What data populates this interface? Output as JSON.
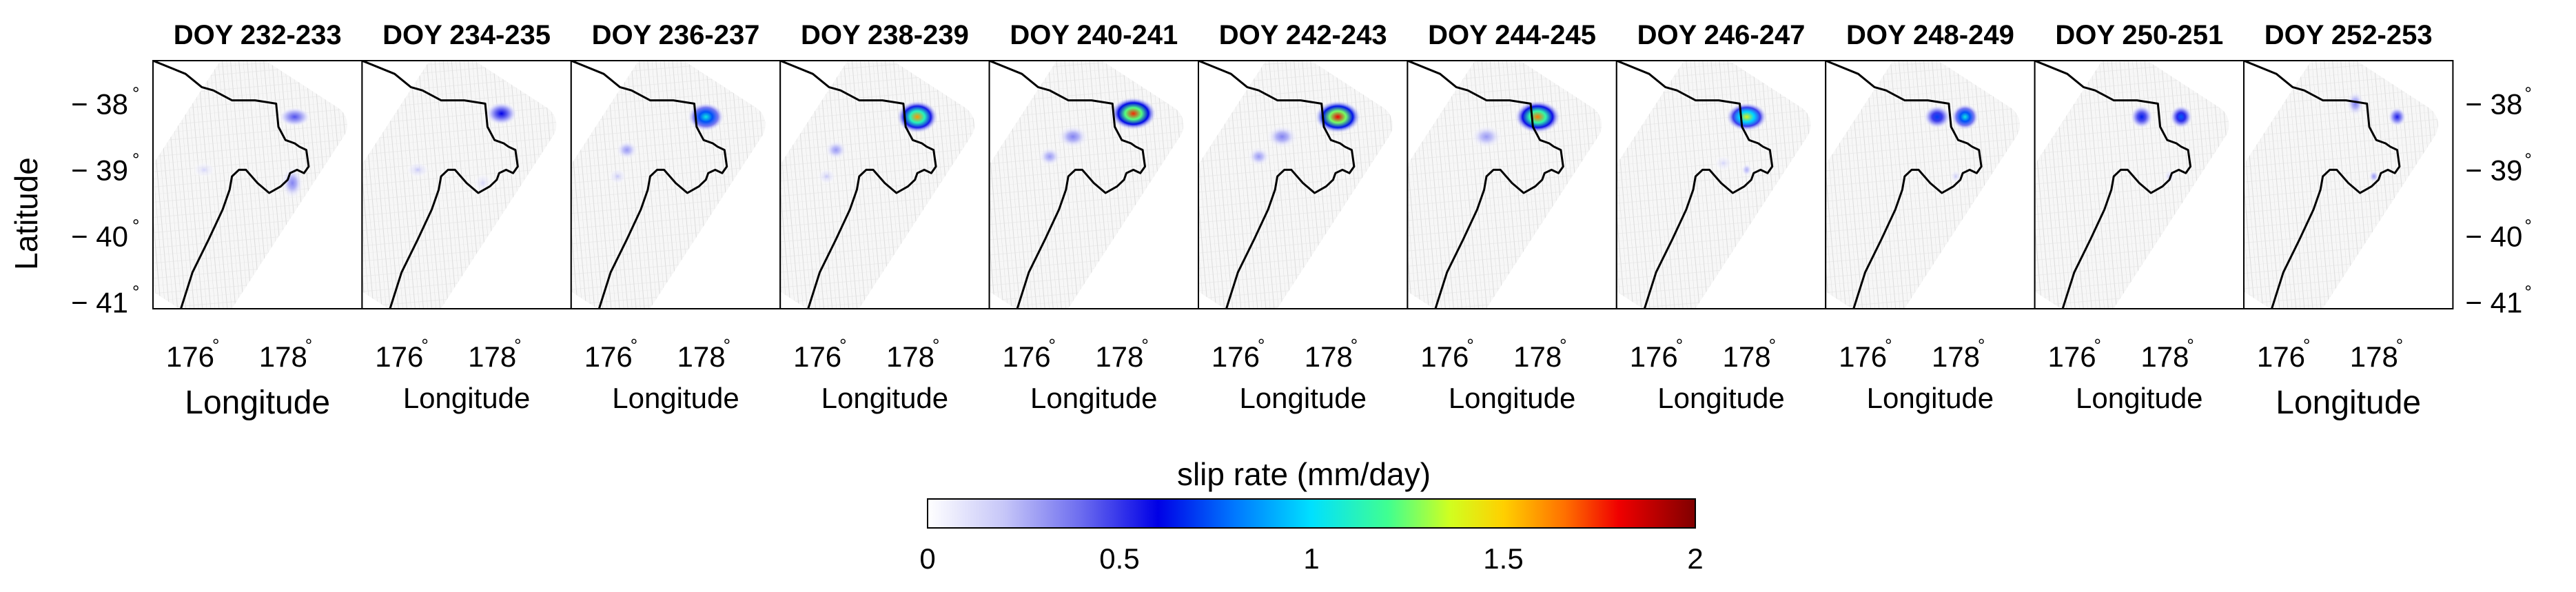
{
  "chart_data": {
    "type": "heatmap",
    "description_level": "small multiples of slow-slip rate maps",
    "ylabel": "Latitude",
    "xlabel": "Longitude",
    "x_ticks": [
      176,
      178
    ],
    "y_ticks": [
      38,
      39,
      40,
      41
    ],
    "x_tick_labels": [
      "176",
      "178"
    ],
    "y_tick_labels": [
      "38",
      "39",
      "40",
      "41"
    ],
    "degree_symbol": "°",
    "xlim": [
      175.2,
      179.7
    ],
    "ylim": [
      41.1,
      37.35
    ],
    "panels": [
      {
        "title": "DOY 232-233",
        "peak_slip_rate": 0.45,
        "patches": [
          {
            "lon": 178.25,
            "lat": 38.2,
            "rate": 0.45,
            "rx": 0.35,
            "ry": 0.15
          },
          {
            "lon": 178.2,
            "lat": 39.2,
            "rate": 0.35,
            "rx": 0.25,
            "ry": 0.25
          },
          {
            "lon": 176.3,
            "lat": 39.0,
            "rate": 0.15,
            "rx": 0.25,
            "ry": 0.12
          }
        ]
      },
      {
        "title": "DOY 234-235",
        "peak_slip_rate": 0.6,
        "patches": [
          {
            "lon": 178.2,
            "lat": 38.15,
            "rate": 0.6,
            "rx": 0.35,
            "ry": 0.18
          },
          {
            "lon": 176.4,
            "lat": 39.0,
            "rate": 0.2,
            "rx": 0.25,
            "ry": 0.12
          },
          {
            "lon": 177.8,
            "lat": 39.2,
            "rate": 0.15,
            "rx": 0.2,
            "ry": 0.15
          }
        ]
      },
      {
        "title": "DOY 236-237",
        "peak_slip_rate": 1.05,
        "patches": [
          {
            "lon": 178.1,
            "lat": 38.2,
            "rate": 1.05,
            "rx": 0.4,
            "ry": 0.22
          },
          {
            "lon": 176.4,
            "lat": 38.7,
            "rate": 0.3,
            "rx": 0.25,
            "ry": 0.15
          },
          {
            "lon": 176.2,
            "lat": 39.1,
            "rate": 0.2,
            "rx": 0.2,
            "ry": 0.12
          }
        ]
      },
      {
        "title": "DOY 238-239",
        "peak_slip_rate": 1.6,
        "patches": [
          {
            "lon": 178.15,
            "lat": 38.2,
            "rate": 1.6,
            "rx": 0.45,
            "ry": 0.25
          },
          {
            "lon": 176.4,
            "lat": 38.7,
            "rate": 0.3,
            "rx": 0.25,
            "ry": 0.15
          },
          {
            "lon": 176.2,
            "lat": 39.1,
            "rate": 0.2,
            "rx": 0.2,
            "ry": 0.12
          }
        ]
      },
      {
        "title": "DOY 240-241",
        "peak_slip_rate": 1.75,
        "patches": [
          {
            "lon": 178.3,
            "lat": 38.15,
            "rate": 1.75,
            "rx": 0.5,
            "ry": 0.25
          },
          {
            "lon": 177.0,
            "lat": 38.5,
            "rate": 0.35,
            "rx": 0.35,
            "ry": 0.18
          },
          {
            "lon": 176.5,
            "lat": 38.8,
            "rate": 0.3,
            "rx": 0.25,
            "ry": 0.15
          }
        ]
      },
      {
        "title": "DOY 242-243",
        "peak_slip_rate": 1.8,
        "patches": [
          {
            "lon": 178.2,
            "lat": 38.2,
            "rate": 1.8,
            "rx": 0.5,
            "ry": 0.25
          },
          {
            "lon": 177.0,
            "lat": 38.5,
            "rate": 0.35,
            "rx": 0.35,
            "ry": 0.18
          },
          {
            "lon": 176.5,
            "lat": 38.8,
            "rate": 0.3,
            "rx": 0.25,
            "ry": 0.15
          }
        ]
      },
      {
        "title": "DOY 244-245",
        "peak_slip_rate": 1.65,
        "patches": [
          {
            "lon": 178.0,
            "lat": 38.2,
            "rate": 1.65,
            "rx": 0.5,
            "ry": 0.25
          },
          {
            "lon": 176.9,
            "lat": 38.5,
            "rate": 0.3,
            "rx": 0.35,
            "ry": 0.18
          }
        ]
      },
      {
        "title": "DOY 246-247",
        "peak_slip_rate": 1.4,
        "patches": [
          {
            "lon": 178.0,
            "lat": 38.2,
            "rate": 1.4,
            "rx": 0.45,
            "ry": 0.22
          },
          {
            "lon": 177.5,
            "lat": 38.9,
            "rate": 0.15,
            "rx": 0.2,
            "ry": 0.12
          },
          {
            "lon": 178.0,
            "lat": 39.0,
            "rate": 0.25,
            "rx": 0.12,
            "ry": 0.1
          }
        ]
      },
      {
        "title": "DOY 248-249",
        "peak_slip_rate": 1.05,
        "patches": [
          {
            "lon": 178.2,
            "lat": 38.2,
            "rate": 1.05,
            "rx": 0.3,
            "ry": 0.2
          },
          {
            "lon": 177.6,
            "lat": 38.2,
            "rate": 0.7,
            "rx": 0.3,
            "ry": 0.18
          },
          {
            "lon": 178.0,
            "lat": 39.1,
            "rate": 0.2,
            "rx": 0.12,
            "ry": 0.1
          }
        ]
      },
      {
        "title": "DOY 250-251",
        "peak_slip_rate": 0.75,
        "patches": [
          {
            "lon": 178.35,
            "lat": 38.2,
            "rate": 0.75,
            "rx": 0.25,
            "ry": 0.18
          },
          {
            "lon": 177.5,
            "lat": 38.2,
            "rate": 0.65,
            "rx": 0.25,
            "ry": 0.18
          },
          {
            "lon": 178.1,
            "lat": 39.1,
            "rate": 0.2,
            "rx": 0.12,
            "ry": 0.1
          }
        ]
      },
      {
        "title": "DOY 252-253",
        "peak_slip_rate": 0.55,
        "patches": [
          {
            "lon": 178.5,
            "lat": 38.2,
            "rate": 0.55,
            "rx": 0.2,
            "ry": 0.15
          },
          {
            "lon": 177.6,
            "lat": 38.0,
            "rate": 0.35,
            "rx": 0.2,
            "ry": 0.2
          },
          {
            "lon": 178.0,
            "lat": 39.1,
            "rate": 0.3,
            "rx": 0.12,
            "ry": 0.1
          }
        ]
      }
    ],
    "colorbar": {
      "title": "slip rate (mm/day)",
      "min": 0,
      "max": 2,
      "tick_values": [
        0,
        0.5,
        1,
        1.5,
        2
      ],
      "tick_labels": [
        "0",
        "0.5",
        "1",
        "1.5",
        "2"
      ],
      "colormap": "jet-white"
    },
    "coastline": {
      "lons": [
        175.2,
        175.9,
        176.25,
        176.5,
        176.9,
        177.4,
        177.85,
        177.9,
        178.05,
        178.25,
        178.35,
        178.5,
        178.55,
        178.45,
        178.3,
        178.15,
        178.1,
        177.95,
        177.7,
        177.45,
        177.2,
        177.05,
        176.9,
        176.85,
        176.7,
        176.4,
        176.05,
        175.8
      ],
      "lats": [
        37.35,
        37.55,
        37.75,
        37.8,
        37.95,
        37.95,
        38.0,
        38.35,
        38.55,
        38.6,
        38.65,
        38.7,
        38.95,
        39.05,
        39.0,
        39.05,
        39.15,
        39.25,
        39.35,
        39.2,
        39.0,
        39.0,
        39.1,
        39.3,
        39.6,
        40.05,
        40.55,
        41.1
      ]
    }
  }
}
